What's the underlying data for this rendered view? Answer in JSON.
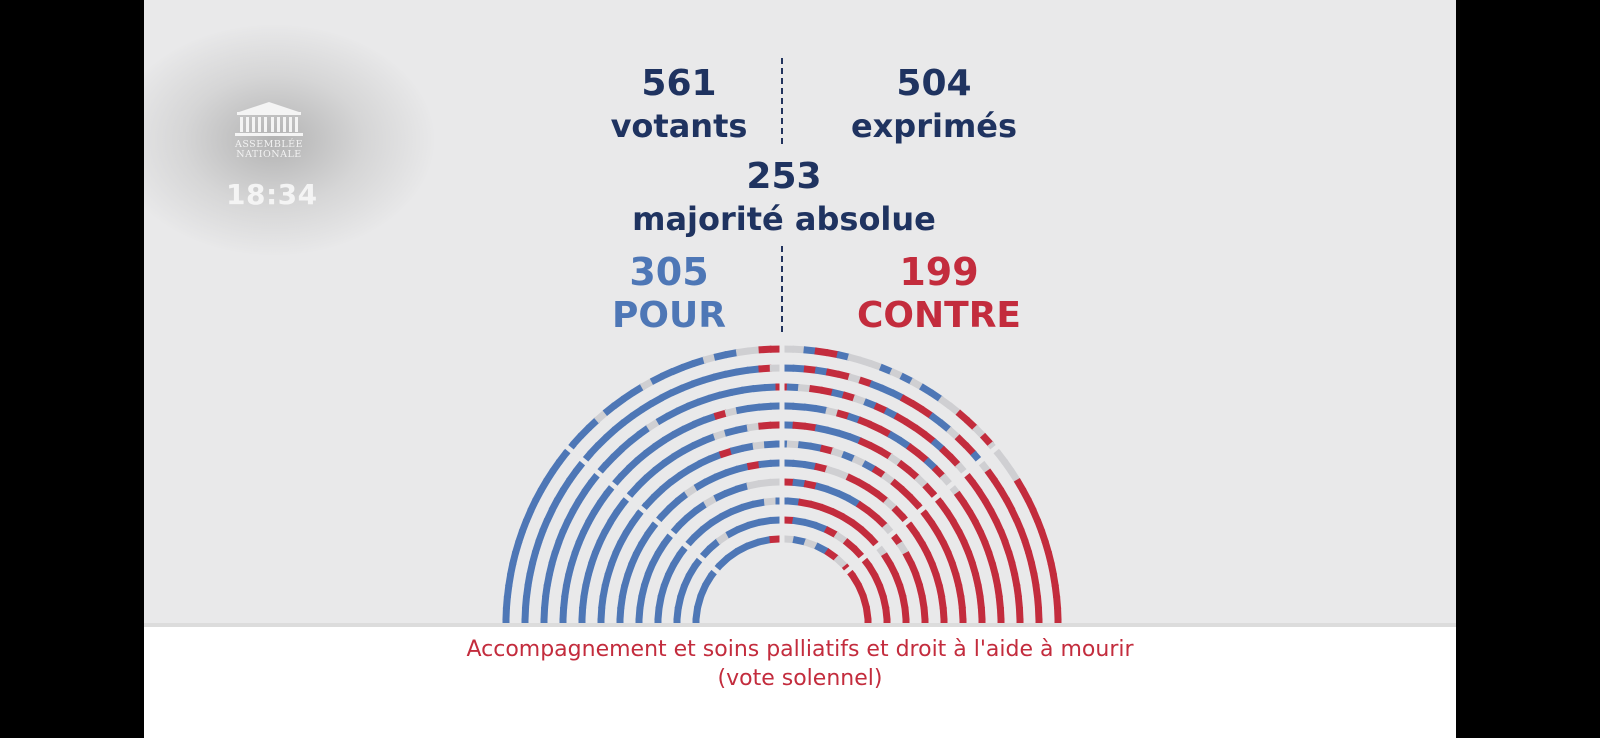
{
  "logo": {
    "name_line1": "ASSEMBLÉE",
    "name_line2": "NATIONALE",
    "icon": "palais-bourbon-icon"
  },
  "clock": "18:34",
  "stats": {
    "votants": {
      "value": "561",
      "label": "votants"
    },
    "exprimes": {
      "value": "504",
      "label": "exprimés"
    },
    "majorite": {
      "value": "253",
      "label": "majorité absolue"
    },
    "pour": {
      "value": "305",
      "label": "POUR"
    },
    "contre": {
      "value": "199",
      "label": "CONTRE"
    }
  },
  "colors": {
    "pour": "#4e77b6",
    "contre": "#c32c3d",
    "non_exprime": "#cfcfd2",
    "text": "#1f3360"
  },
  "hemicycle": {
    "seats_pour": 305,
    "seats_contre": 199,
    "seats_other": 57
  },
  "caption": {
    "line1": "Accompagnement et soins palliatifs et droit à l'aide à mourir",
    "line2": "(vote solennel)"
  }
}
